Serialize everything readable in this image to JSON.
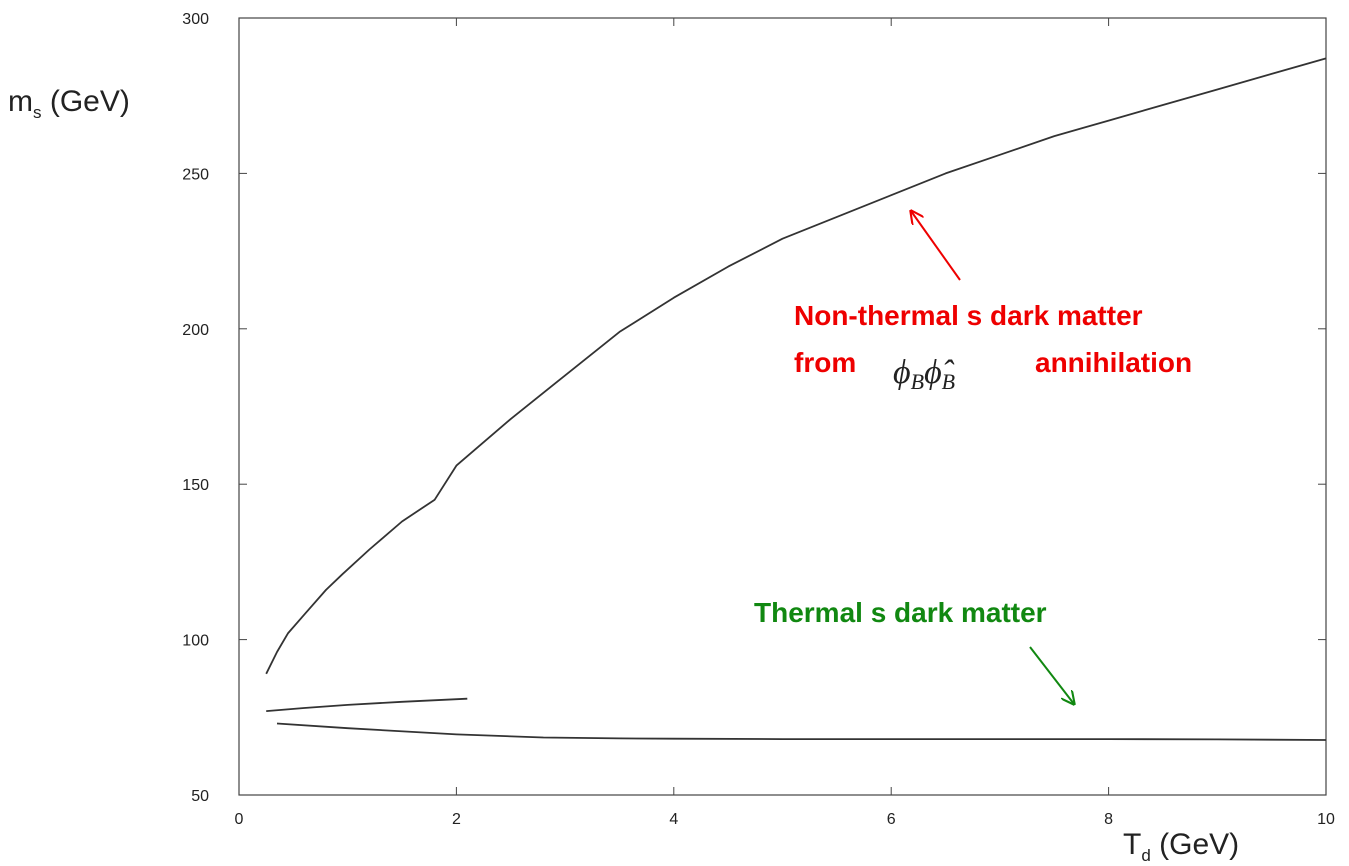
{
  "chart_data": {
    "type": "line",
    "title": "",
    "xlabel": "T",
    "xlabel_sub": "d",
    "xlabel_unit": " (GeV)",
    "ylabel": "m",
    "ylabel_sub": "s",
    "ylabel_unit": " (GeV)",
    "xlim": [
      0,
      10
    ],
    "ylim": [
      50,
      300
    ],
    "xticks": [
      0,
      2,
      4,
      6,
      8,
      10
    ],
    "yticks": [
      50,
      100,
      150,
      200,
      250,
      300
    ],
    "xtick_labels": [
      "0",
      "2",
      "4",
      "6",
      "8",
      "10"
    ],
    "ytick_labels": [
      "50",
      "100",
      "150",
      "200",
      "250",
      "300"
    ],
    "grid": false,
    "series": [
      {
        "color": "#333333",
        "x": [
          0.25,
          0.35,
          0.45,
          0.6,
          0.8,
          0.95,
          1.2,
          1.5,
          1.8,
          2.0,
          2.2,
          2.5,
          3.0,
          3.5,
          4.0,
          4.5,
          5.0,
          5.5,
          6.0,
          6.5,
          7.0,
          7.5,
          8.0,
          8.5,
          9.0,
          9.5,
          10.0
        ],
        "y": [
          89,
          96,
          102,
          108,
          116,
          121,
          129,
          138,
          145,
          156,
          162,
          171,
          185,
          199,
          210,
          220,
          229,
          236,
          243,
          250,
          256,
          262,
          267,
          272,
          277,
          282,
          287
        ]
      },
      {
        "color": "#333333",
        "x": [
          0.25,
          0.6,
          1.0,
          1.5,
          2.1
        ],
        "y": [
          77,
          78,
          79,
          80,
          81
        ]
      },
      {
        "color": "#333333",
        "x": [
          0.35,
          1.0,
          2.0,
          2.8,
          3.5,
          4.0,
          5.0,
          6.0,
          7.0,
          8.0,
          9.0,
          10.0
        ],
        "y": [
          73,
          71.5,
          69.5,
          68.5,
          68.2,
          68.1,
          68,
          68,
          68,
          68,
          67.9,
          67.7
        ]
      }
    ],
    "annotations": [
      {
        "line1": "Non-thermal s dark matter",
        "line2_prefix": "from",
        "symbol_main": "ϕ",
        "symbol_sub": "B",
        "symbol2_main": "ϕ̂",
        "symbol2_sub": "B",
        "line2_suffix": "annihilation",
        "color": "#ee0000",
        "arrow_to": [
          6.1,
          240
        ]
      },
      {
        "line1": "Thermal s dark matter",
        "color": "#118811",
        "arrow_to": [
          7.75,
          78
        ]
      }
    ]
  }
}
